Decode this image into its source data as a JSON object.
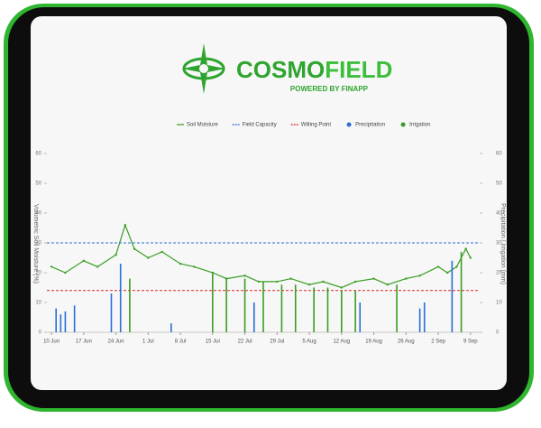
{
  "header": {
    "brand_a": "COSMO",
    "brand_b": "FIELD",
    "tagline": "POWERED BY FINAPP"
  },
  "chart_data": {
    "type": "line",
    "ylabel": "Volumetric Soil Moisture (%)",
    "y2label": "Precipitation / Irrigation (mm)",
    "xlim": [
      "9 Jun",
      "11 Sep"
    ],
    "xticks": [
      "10 Jun",
      "17 Jun",
      "24 Jun",
      "1 Jul",
      "8 Jul",
      "15 Jul",
      "22 Jul",
      "29 Jul",
      "5 Aug",
      "12 Aug",
      "19 Aug",
      "26 Aug",
      "2 Sep",
      "9 Sep"
    ],
    "ylim": [
      0,
      60
    ],
    "yticks": [
      0,
      10,
      20,
      30,
      40,
      50,
      60
    ],
    "y2lim": [
      0,
      60
    ],
    "y2ticks": [
      0,
      10,
      20,
      30,
      40,
      50,
      60
    ],
    "grid": false,
    "series": [
      {
        "name": "Soil Moisture",
        "color": "#3a9d23",
        "kind": "line",
        "x": [
          "10 Jun",
          "13 Jun",
          "17 Jun",
          "20 Jun",
          "24 Jun",
          "26 Jun",
          "28 Jun",
          "1 Jul",
          "4 Jul",
          "8 Jul",
          "11 Jul",
          "15 Jul",
          "18 Jul",
          "22 Jul",
          "25 Jul",
          "29 Jul",
          "1 Aug",
          "5 Aug",
          "8 Aug",
          "12 Aug",
          "15 Aug",
          "19 Aug",
          "22 Aug",
          "26 Aug",
          "29 Aug",
          "2 Sep",
          "4 Sep",
          "6 Sep",
          "8 Sep",
          "9 Sep"
        ],
        "values": [
          22,
          20,
          24,
          22,
          26,
          36,
          28,
          25,
          27,
          23,
          22,
          20,
          18,
          19,
          17,
          17,
          18,
          16,
          17,
          15,
          17,
          18,
          16,
          18,
          19,
          22,
          20,
          22,
          28,
          25
        ]
      },
      {
        "name": "Field Capacity",
        "color": "#2a6fd6",
        "kind": "hline",
        "value": 30
      },
      {
        "name": "Wilting Point",
        "color": "#d62a2a",
        "kind": "hline",
        "value": 14
      },
      {
        "name": "Precipitation",
        "color": "#2a6fd6",
        "kind": "bar",
        "axis": "y2",
        "x": [
          "11 Jun",
          "12 Jun",
          "13 Jun",
          "15 Jun",
          "23 Jun",
          "25 Jun",
          "6 Jul",
          "24 Jul",
          "16 Aug",
          "29 Aug",
          "30 Aug",
          "5 Sep"
        ],
        "values": [
          8,
          6,
          7,
          9,
          13,
          23,
          3,
          10,
          10,
          8,
          10,
          24
        ]
      },
      {
        "name": "Irrigation",
        "color": "#3a9d23",
        "kind": "bar",
        "axis": "y2",
        "x": [
          "27 Jun",
          "15 Jul",
          "18 Jul",
          "22 Jul",
          "26 Jul",
          "30 Jul",
          "2 Aug",
          "6 Aug",
          "9 Aug",
          "12 Aug",
          "15 Aug",
          "24 Aug",
          "7 Sep"
        ],
        "values": [
          18,
          20,
          18,
          18,
          17,
          16,
          16,
          15,
          15,
          14,
          14,
          16,
          27
        ]
      }
    ]
  }
}
